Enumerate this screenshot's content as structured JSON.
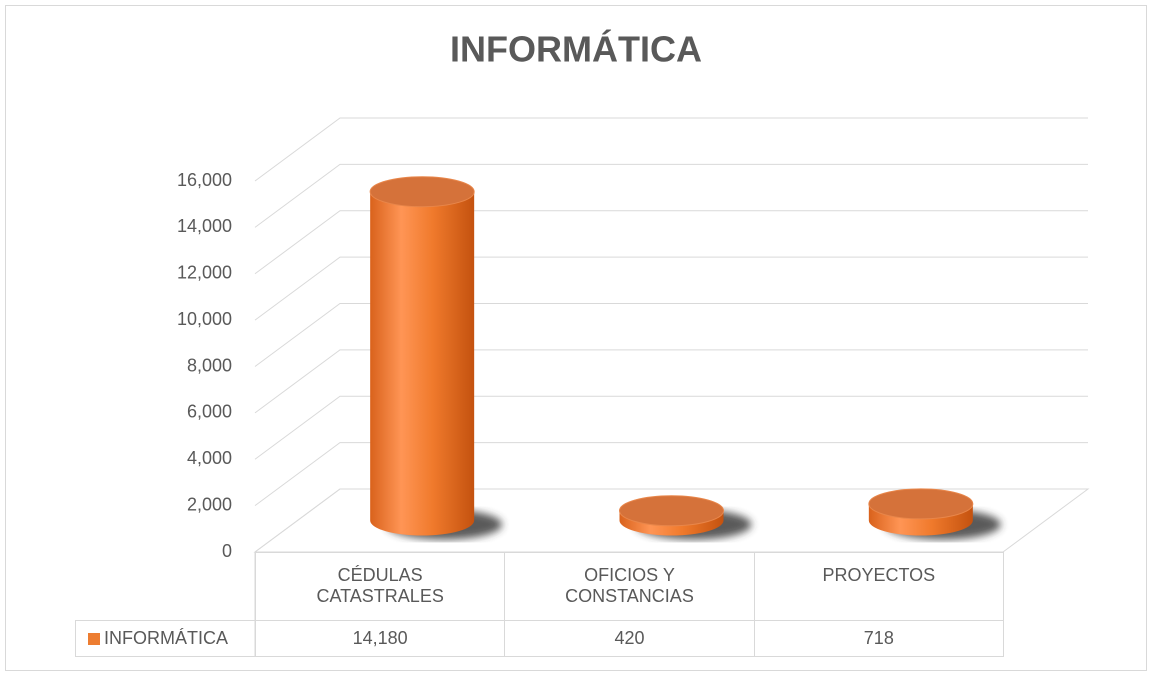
{
  "chart_data": {
    "type": "bar3d",
    "title": "INFORMÁTICA",
    "categories": [
      "CÉDULAS CATASTRALES",
      "OFICIOS Y CONSTANCIAS",
      "PROYECTOS"
    ],
    "series": [
      {
        "name": "INFORMÁTICA",
        "color": "#ed7d31",
        "values": [
          14180,
          420,
          718
        ],
        "value_labels": [
          "14,180",
          "420",
          "718"
        ]
      }
    ],
    "ylim": [
      0,
      16000
    ],
    "yticks": [
      0,
      {
        "value": 2000,
        "label": "2,000"
      },
      {
        "value": 4000,
        "label": "4,000"
      },
      {
        "value": 6000,
        "label": "6,000"
      },
      {
        "value": 8000,
        "label": "8,000"
      },
      {
        "value": 10000,
        "label": "10,000"
      },
      {
        "value": 12000,
        "label": "12,000"
      },
      {
        "value": 14000,
        "label": "14,000"
      },
      {
        "value": 16000,
        "label": "16,000"
      }
    ],
    "grid": true
  }
}
